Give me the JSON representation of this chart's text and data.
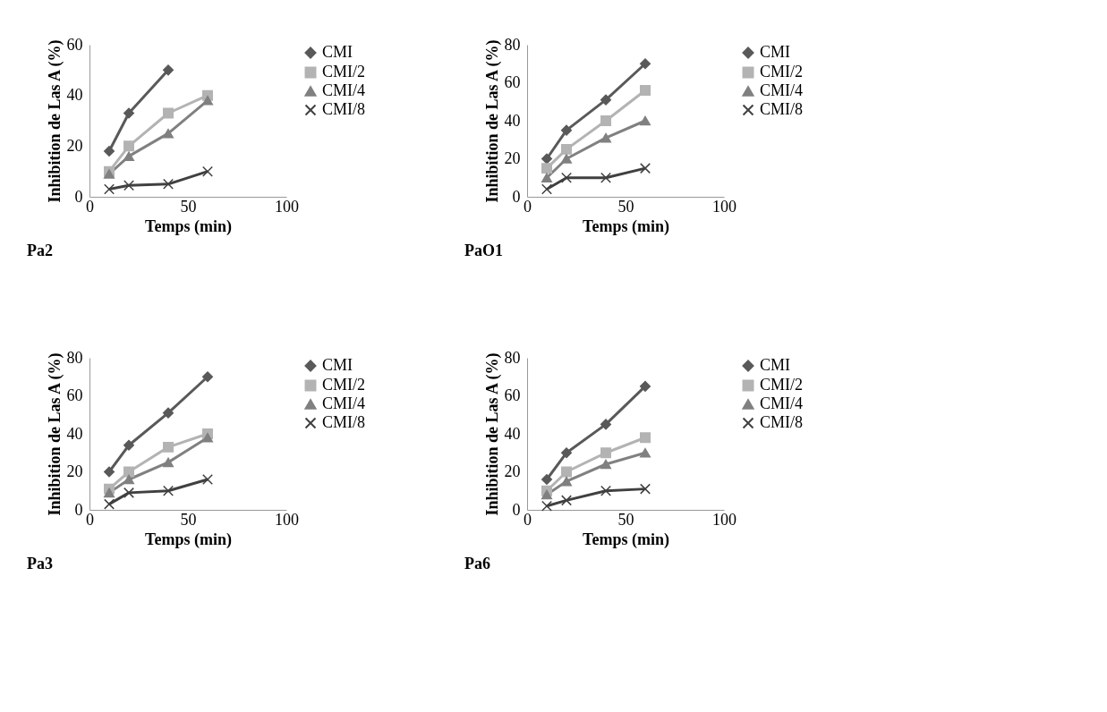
{
  "chart_data": [
    {
      "type": "line",
      "xlabel": "Temps (min)",
      "ylabel": "Inhibition  de Las A (%)",
      "annotations": [
        "Pa2"
      ],
      "x": [
        10,
        20,
        40,
        60
      ],
      "xlim": [
        0,
        100
      ],
      "xticks": [
        0,
        50,
        100
      ],
      "ylim": [
        0,
        60
      ],
      "yticks": [
        0,
        20,
        40,
        60
      ],
      "grid": false,
      "legend": "right",
      "series": [
        {
          "name": "CMI",
          "color": "#595959",
          "marker": "diamond",
          "values": [
            18,
            33,
            50,
            null
          ]
        },
        {
          "name": "CMI/2",
          "color": "#b3b3b3",
          "marker": "square",
          "values": [
            10,
            20,
            33,
            40
          ]
        },
        {
          "name": "CMI/4",
          "color": "#808080",
          "marker": "triangle",
          "values": [
            9,
            16,
            25,
            38
          ]
        },
        {
          "name": "CMI/8",
          "color": "#404040",
          "marker": "cross",
          "values": [
            3,
            4.5,
            5,
            10
          ]
        }
      ]
    },
    {
      "type": "line",
      "xlabel": "Temps (min)",
      "ylabel": "Inhibition  de Las A (%)",
      "annotations": [
        "PaO1"
      ],
      "x": [
        10,
        20,
        40,
        60
      ],
      "xlim": [
        0,
        100
      ],
      "xticks": [
        0,
        50,
        100
      ],
      "ylim": [
        0,
        80
      ],
      "yticks": [
        0,
        20,
        40,
        60,
        80
      ],
      "grid": false,
      "legend": "right",
      "series": [
        {
          "name": "CMI",
          "color": "#595959",
          "marker": "diamond",
          "values": [
            20,
            35,
            51,
            70
          ]
        },
        {
          "name": "CMI/2",
          "color": "#b3b3b3",
          "marker": "square",
          "values": [
            15,
            25,
            40,
            56
          ]
        },
        {
          "name": "CMI/4",
          "color": "#808080",
          "marker": "triangle",
          "values": [
            10,
            20,
            31,
            40
          ]
        },
        {
          "name": "CMI/8",
          "color": "#404040",
          "marker": "cross",
          "values": [
            4,
            10,
            10,
            15
          ]
        }
      ]
    },
    {
      "type": "line",
      "xlabel": "Temps (min)",
      "ylabel": "Inhibition  de Las A (%)",
      "annotations": [
        "Pa3"
      ],
      "x": [
        10,
        20,
        40,
        60
      ],
      "xlim": [
        0,
        100
      ],
      "xticks": [
        0,
        50,
        100
      ],
      "ylim": [
        0,
        80
      ],
      "yticks": [
        0,
        20,
        40,
        60,
        80
      ],
      "grid": false,
      "legend": "right",
      "series": [
        {
          "name": "CMI",
          "color": "#595959",
          "marker": "diamond",
          "values": [
            20,
            34,
            51,
            70
          ]
        },
        {
          "name": "CMI/2",
          "color": "#b3b3b3",
          "marker": "square",
          "values": [
            11,
            20,
            33,
            40
          ]
        },
        {
          "name": "CMI/4",
          "color": "#808080",
          "marker": "triangle",
          "values": [
            9,
            16,
            25,
            38
          ]
        },
        {
          "name": "CMI/8",
          "color": "#404040",
          "marker": "cross",
          "values": [
            3,
            9,
            10,
            16
          ]
        }
      ]
    },
    {
      "type": "line",
      "xlabel": "Temps (min)",
      "ylabel": "Inhibition  de Las A (%)",
      "annotations": [
        "Pa6"
      ],
      "x": [
        10,
        20,
        40,
        60
      ],
      "xlim": [
        0,
        100
      ],
      "xticks": [
        0,
        50,
        100
      ],
      "ylim": [
        0,
        80
      ],
      "yticks": [
        0,
        20,
        40,
        60,
        80
      ],
      "grid": false,
      "legend": "right",
      "series": [
        {
          "name": "CMI",
          "color": "#595959",
          "marker": "diamond",
          "values": [
            16,
            30,
            45,
            65
          ]
        },
        {
          "name": "CMI/2",
          "color": "#b3b3b3",
          "marker": "square",
          "values": [
            10,
            20,
            30,
            38
          ]
        },
        {
          "name": "CMI/4",
          "color": "#808080",
          "marker": "triangle",
          "values": [
            8,
            15,
            24,
            30
          ]
        },
        {
          "name": "CMI/8",
          "color": "#404040",
          "marker": "cross",
          "values": [
            2,
            5,
            10,
            11
          ]
        }
      ]
    }
  ]
}
